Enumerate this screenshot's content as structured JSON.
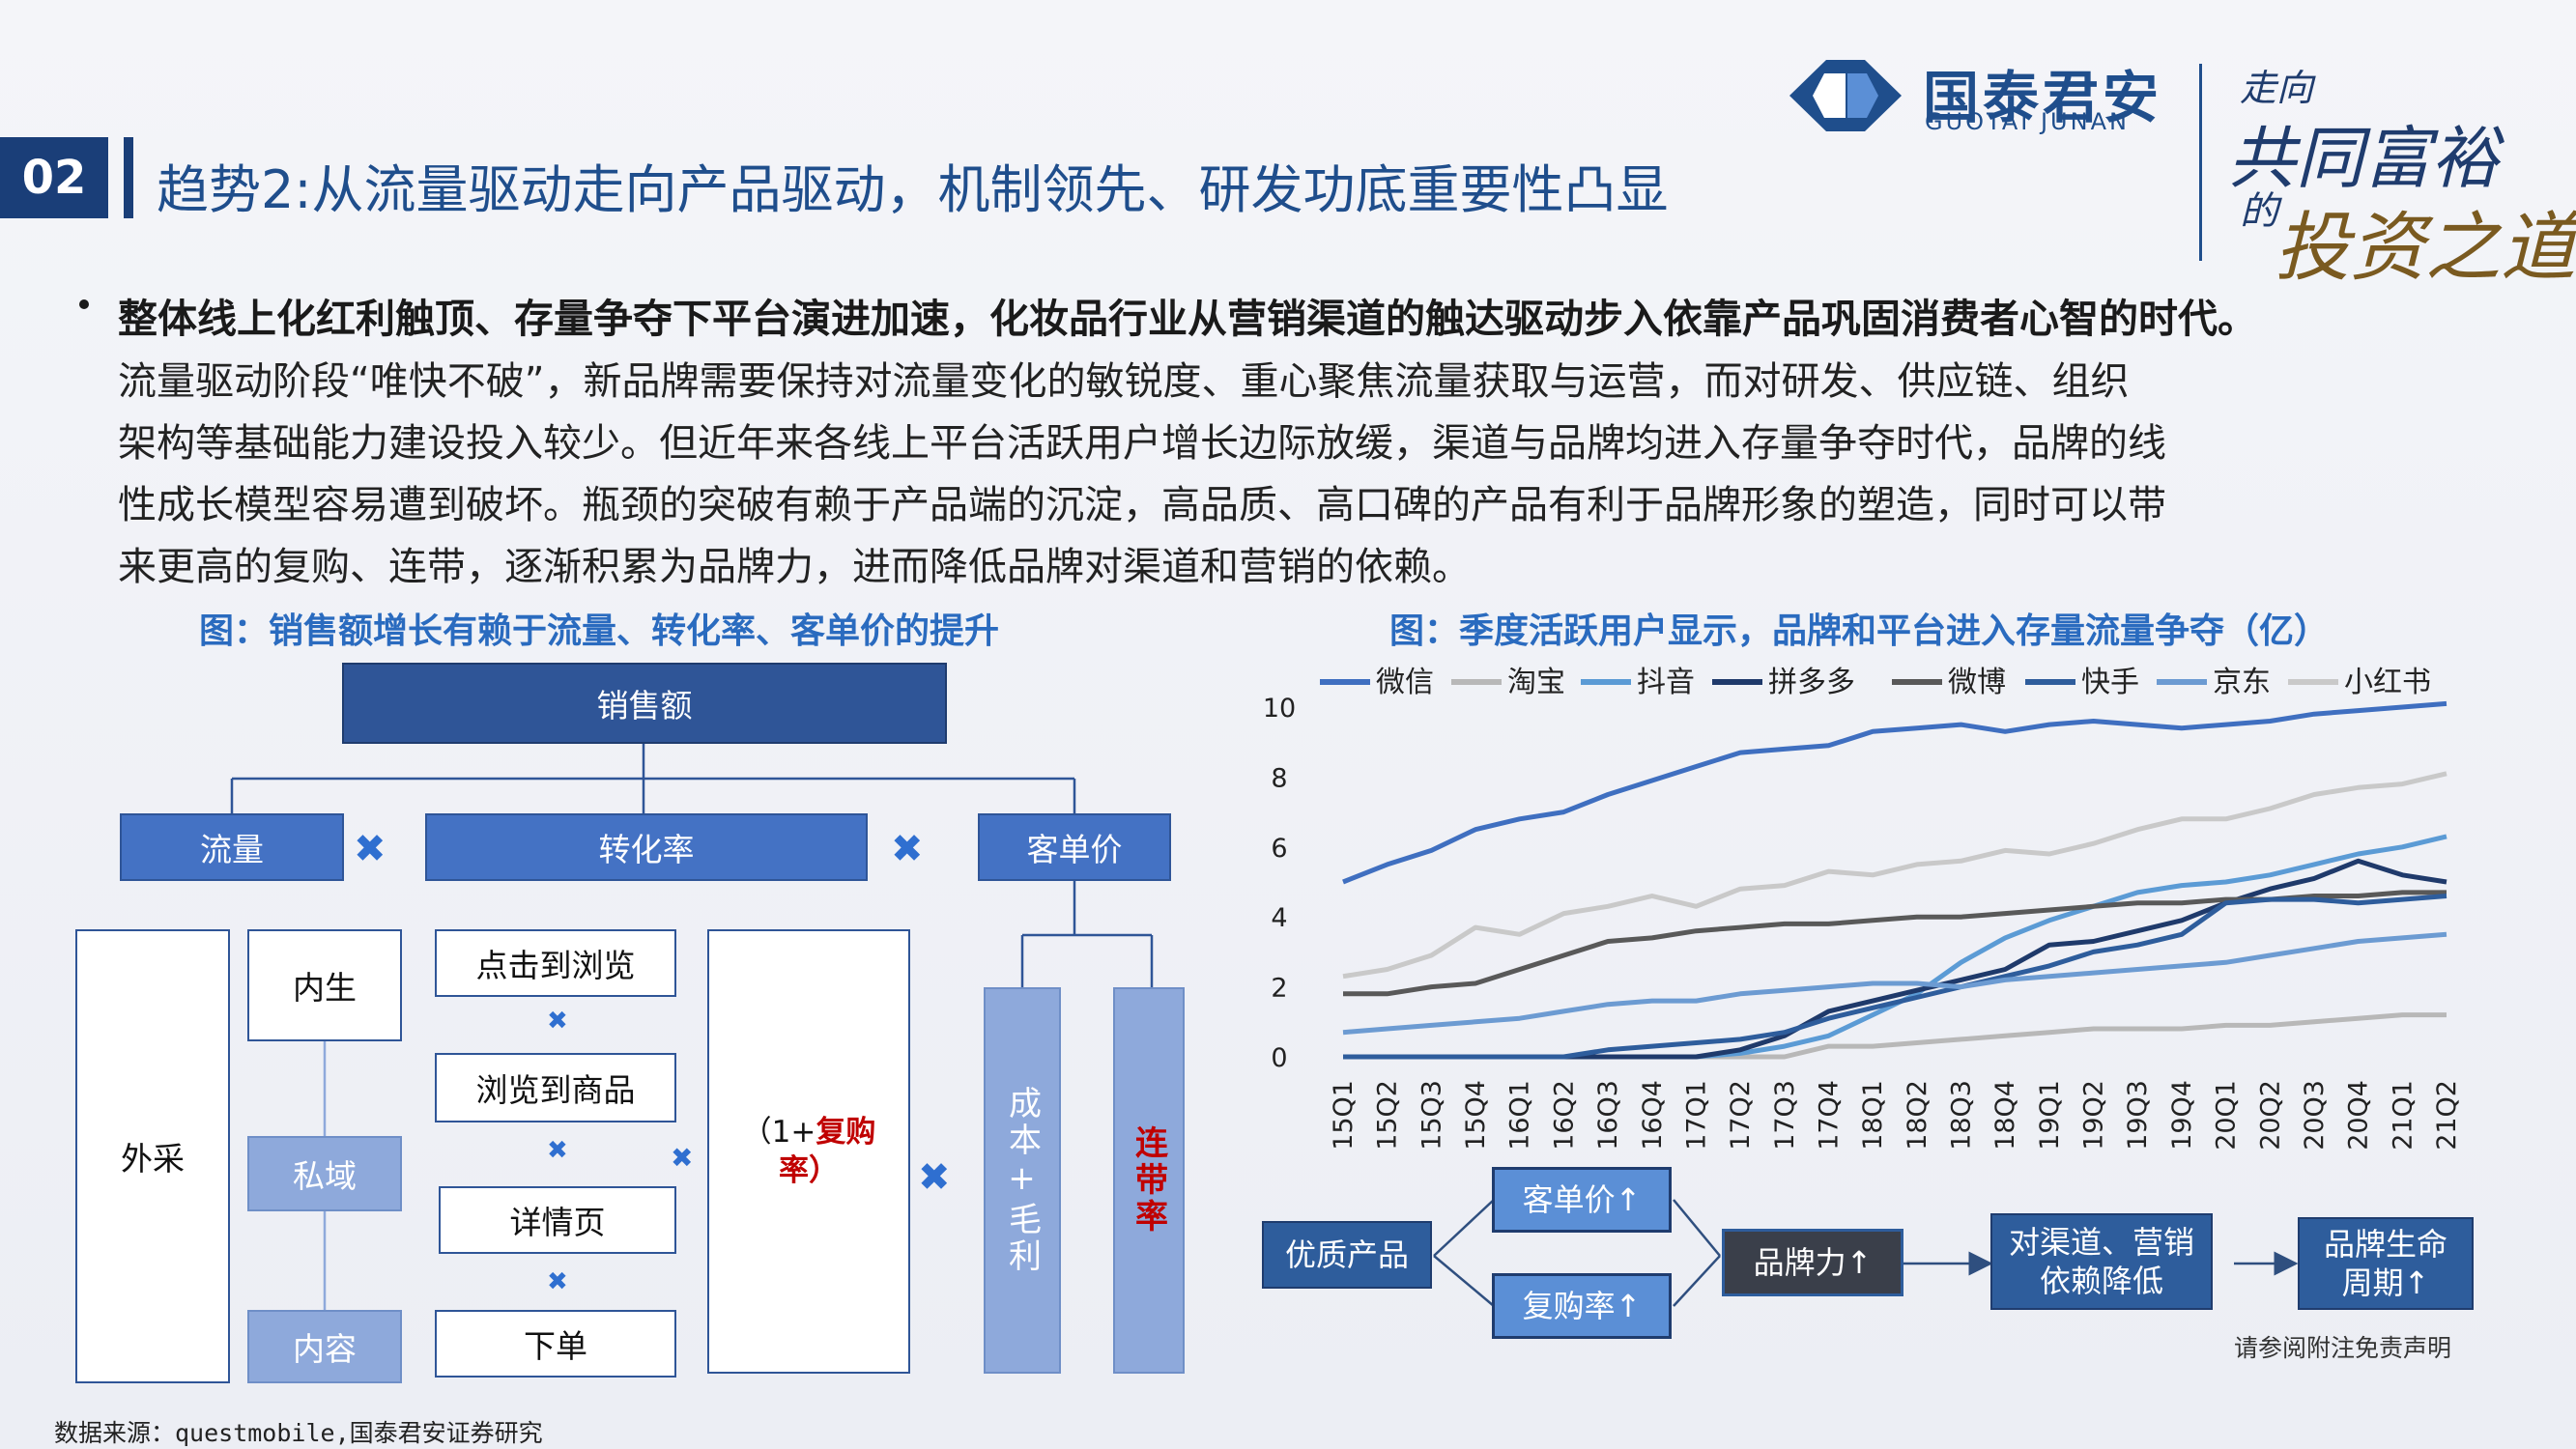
{
  "header": {
    "section_number": "02",
    "title": "趋势2:从流量驱动走向产品驱动，机制领先、研发功底重要性凸显",
    "logo_cn": "国泰君安",
    "logo_en": "GUOTAI JUNAN",
    "slogan_top": "走向",
    "slogan_main": "共同富裕",
    "slogan_small": "的",
    "slogan_end": "投资之道",
    "logo_color": "#1f4e8c"
  },
  "body": {
    "lead": "整体线上化红利触顶、存量争夺下平台演进加速，化妆品行业从营销渠道的触达驱动步入依靠产品巩固消费者心智的时代。",
    "lines": [
      "流量驱动阶段“唯快不破”，新品牌需要保持对流量变化的敏锐度、重心聚焦流量获取与运营，而对研发、供应链、组织",
      "架构等基础能力建设投入较少。但近年来各线上平台活跃用户增长边际放缓，渠道与品牌均进入存量争夺时代，品牌的线",
      "性成长模型容易遭到破坏。瓶颈的突破有赖于产品端的沉淀，高品质、高口碑的产品有利于品牌形象的塑造，同时可以带",
      "来更高的复购、连带，逐渐积累为品牌力，进而降低品牌对渠道和营销的依赖。"
    ]
  },
  "left_figure": {
    "caption": "图：销售额增长有赖于流量、转化率、客单价的提升",
    "sales": "销售额",
    "traffic": "流量",
    "conversion": "转化率",
    "aov": "客单价",
    "external": "外采",
    "internal": "内生",
    "private": "私域",
    "content": "内容",
    "click_to_browse": "点击到浏览",
    "browse_to_product": "浏览到商品",
    "detail_page": "详情页",
    "order": "下单",
    "repurchase_prefix": "（1+",
    "repurchase_word": "复购",
    "repurchase_suffix": "率）",
    "cost_margin": "成本+毛利",
    "attach_rate": "连带率",
    "times_symbol": "✖"
  },
  "right_figure": {
    "caption": "图：季度活跃用户显示，品牌和平台进入存量流量争夺（亿）"
  },
  "chart_data": {
    "type": "line",
    "title": "",
    "xlabel": "",
    "ylabel": "",
    "ylim": [
      0,
      10
    ],
    "yticks": [
      "0",
      "2",
      "4",
      "6",
      "8",
      "10"
    ],
    "legend_position": "top",
    "grid": false,
    "categories": [
      "15Q1",
      "15Q2",
      "15Q3",
      "15Q4",
      "16Q1",
      "16Q2",
      "16Q3",
      "16Q4",
      "17Q1",
      "17Q2",
      "17Q3",
      "17Q4",
      "18Q1",
      "18Q2",
      "18Q3",
      "18Q4",
      "19Q1",
      "19Q2",
      "19Q3",
      "19Q4",
      "20Q1",
      "20Q2",
      "20Q3",
      "20Q4",
      "21Q1",
      "21Q2"
    ],
    "series": [
      {
        "name": "微信",
        "color": "#3f6fc0",
        "values": [
          5.0,
          5.5,
          5.9,
          6.5,
          6.8,
          7.0,
          7.5,
          7.9,
          8.3,
          8.7,
          8.8,
          8.9,
          9.3,
          9.4,
          9.5,
          9.3,
          9.5,
          9.6,
          9.5,
          9.4,
          9.5,
          9.6,
          9.8,
          9.9,
          10.0,
          10.1
        ]
      },
      {
        "name": "淘宝",
        "color": "#b8b8b8",
        "values": [
          0,
          0,
          0,
          0,
          0,
          0,
          0,
          0,
          0,
          0,
          0,
          0.3,
          0.3,
          0.4,
          0.5,
          0.6,
          0.7,
          0.8,
          0.8,
          0.8,
          0.9,
          0.9,
          1.0,
          1.1,
          1.2,
          1.2
        ]
      },
      {
        "name": "抖音",
        "color": "#5b9bd5",
        "values": [
          0,
          0,
          0,
          0,
          0,
          0,
          0,
          0,
          0,
          0.1,
          0.3,
          0.6,
          1.2,
          1.8,
          2.7,
          3.4,
          3.9,
          4.3,
          4.7,
          4.9,
          5.0,
          5.2,
          5.5,
          5.8,
          6.0,
          6.3
        ]
      },
      {
        "name": "拼多多",
        "color": "#1f3a6b",
        "values": [
          0,
          0,
          0,
          0,
          0,
          0,
          0,
          0,
          0,
          0.2,
          0.6,
          1.3,
          1.6,
          1.9,
          2.2,
          2.5,
          3.2,
          3.3,
          3.6,
          3.9,
          4.4,
          4.8,
          5.1,
          5.6,
          5.2,
          5.0
        ]
      },
      {
        "name": "微博",
        "color": "#595959",
        "values": [
          1.8,
          1.8,
          2.0,
          2.1,
          2.5,
          2.9,
          3.3,
          3.4,
          3.6,
          3.7,
          3.8,
          3.8,
          3.9,
          4.0,
          4.0,
          4.1,
          4.2,
          4.3,
          4.4,
          4.4,
          4.5,
          4.5,
          4.6,
          4.6,
          4.7,
          4.7
        ]
      },
      {
        "name": "快手",
        "color": "#2e5d9c",
        "values": [
          0,
          0,
          0,
          0,
          0,
          0,
          0.2,
          0.3,
          0.4,
          0.5,
          0.7,
          1.1,
          1.4,
          1.7,
          2.0,
          2.3,
          2.6,
          3.0,
          3.2,
          3.5,
          4.4,
          4.5,
          4.5,
          4.4,
          4.5,
          4.6
        ]
      },
      {
        "name": "京东",
        "color": "#6c9bd2",
        "values": [
          0.7,
          0.8,
          0.9,
          1.0,
          1.1,
          1.3,
          1.5,
          1.6,
          1.6,
          1.8,
          1.9,
          2.0,
          2.1,
          2.1,
          2.0,
          2.2,
          2.3,
          2.4,
          2.5,
          2.6,
          2.7,
          2.9,
          3.1,
          3.3,
          3.4,
          3.5
        ]
      },
      {
        "name": "小红书",
        "color": "#c9c9c9",
        "values": [
          2.3,
          2.5,
          2.9,
          3.7,
          3.5,
          4.1,
          4.3,
          4.6,
          4.3,
          4.8,
          4.9,
          5.3,
          5.2,
          5.5,
          5.6,
          5.9,
          5.8,
          6.1,
          6.5,
          6.8,
          6.8,
          7.1,
          7.5,
          7.7,
          7.8,
          8.1
        ]
      }
    ]
  },
  "flow": {
    "quality_product": "优质产品",
    "aov_up": "客单价↑",
    "repurchase_up": "复购率↑",
    "brand_power_up": "品牌力↑",
    "less_dependence": "对渠道、营销依赖降低",
    "lifecycle_up": "品牌生命周期↑"
  },
  "footer": {
    "source": "数据来源：questmobile,国泰君安证券研究",
    "disclaimer": "请参阅附注免责声明"
  }
}
